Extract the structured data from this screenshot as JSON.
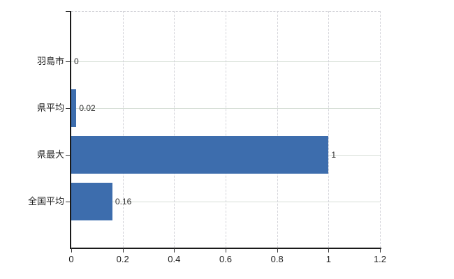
{
  "chart_data": {
    "type": "bar",
    "orientation": "horizontal",
    "title": "",
    "xlabel": "",
    "ylabel": "",
    "categories": [
      "羽島市",
      "県平均",
      "県最大",
      "全国平均"
    ],
    "values": [
      0,
      0.02,
      1,
      0.16
    ],
    "value_labels": [
      "0",
      "0.02",
      "1",
      "0.16"
    ],
    "x_ticks": [
      0,
      0.2,
      0.4,
      0.6,
      0.8,
      1,
      1.2
    ],
    "x_tick_labels": [
      "0",
      "0.2",
      "0.4",
      "0.6",
      "0.8",
      "1",
      "1.2"
    ],
    "xlim": [
      0,
      1.2
    ],
    "grid": true,
    "legend": "none",
    "colors": {
      "bar": "#3d6dad",
      "axis": "#1a1a1a",
      "hgrid": "#d6ded6",
      "vgrid": "#d4d4da",
      "label": "#1f1f1f",
      "value_label": "#2e2e2e",
      "background": "#ffffff"
    }
  }
}
